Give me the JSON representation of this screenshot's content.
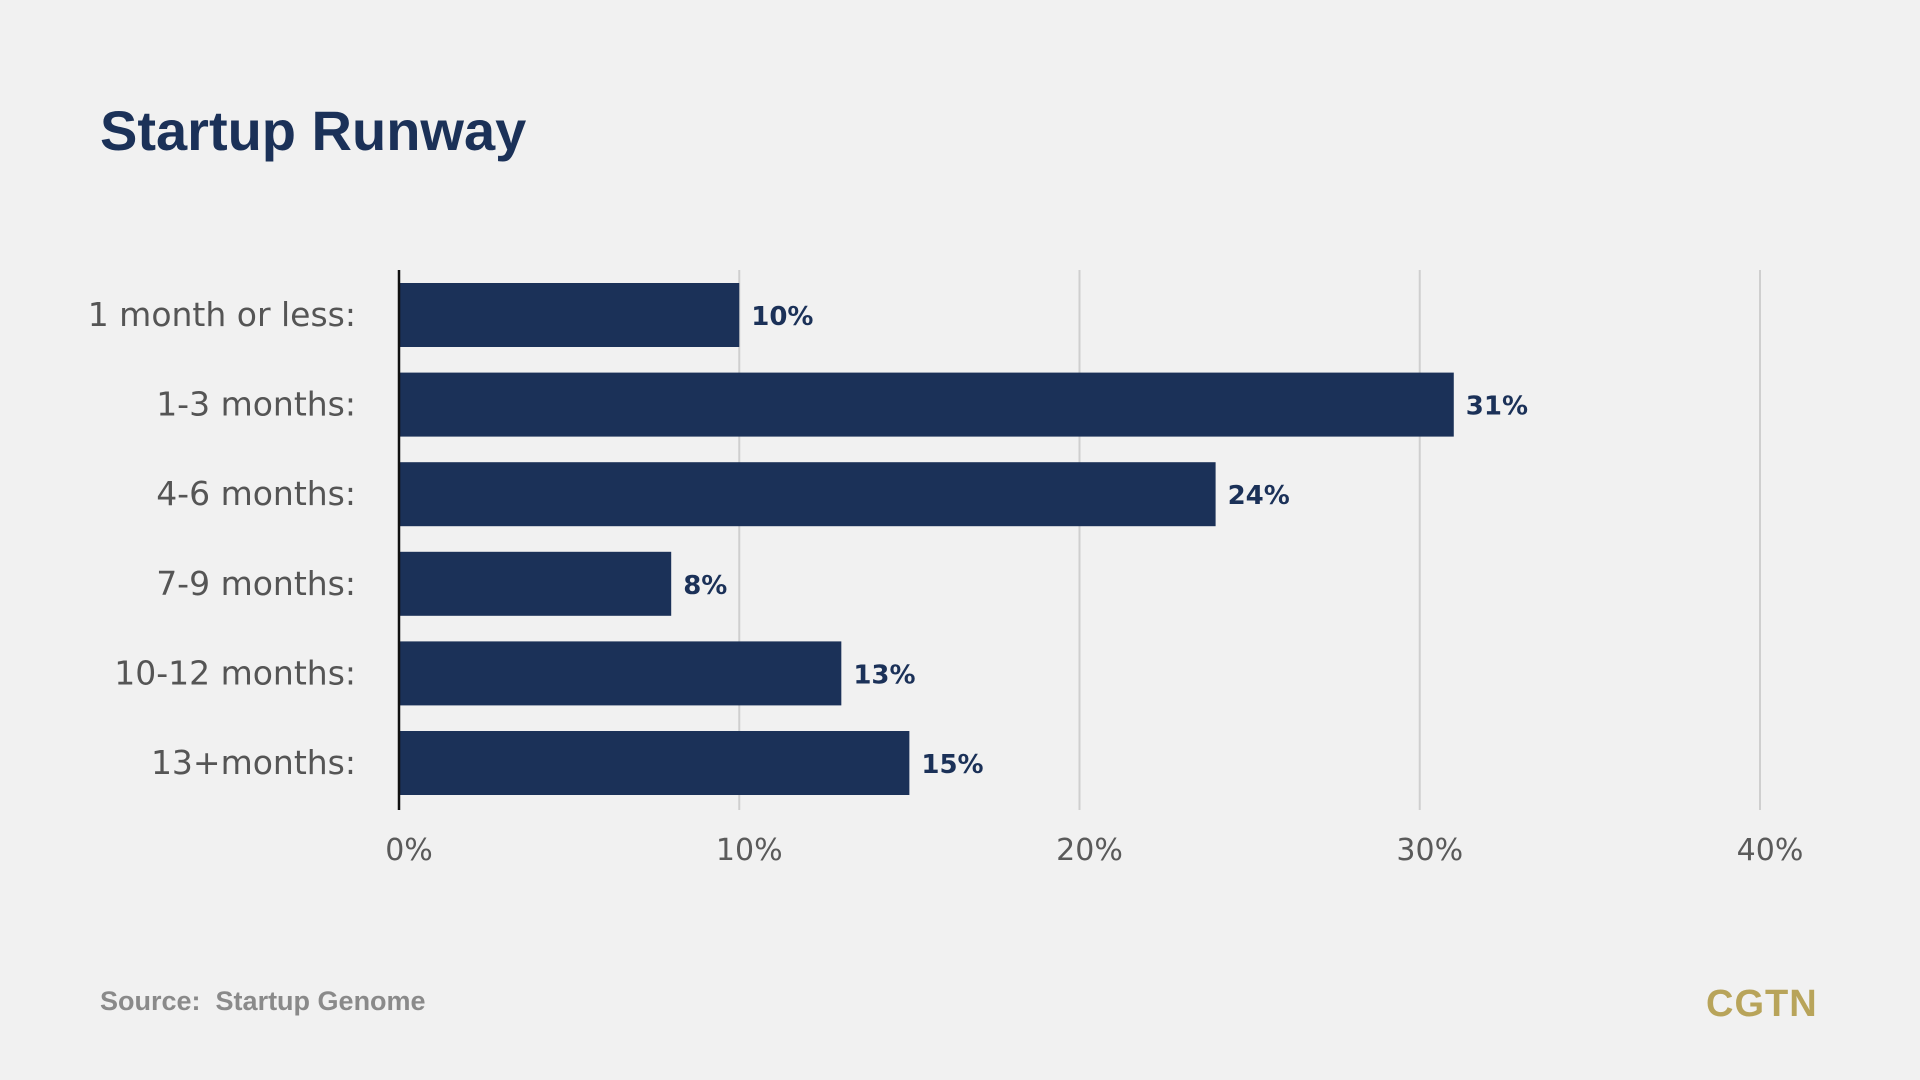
{
  "chart_data": {
    "type": "bar",
    "orientation": "horizontal",
    "title": "Startup Runway",
    "categories": [
      "1 month or less:",
      "1-3 months:",
      "4-6 months:",
      "7-9 months:",
      "10-12 months:",
      "13+months:"
    ],
    "values": [
      10,
      31,
      24,
      8,
      13,
      15
    ],
    "value_labels": [
      "10%",
      "31%",
      "24%",
      "8%",
      "13%",
      "15%"
    ],
    "xticks": [
      "0%",
      "10%",
      "20%",
      "30%",
      "40%"
    ],
    "xlim": [
      0,
      40
    ],
    "xlabel": "",
    "ylabel": "",
    "grid": "vertical",
    "legend": "none"
  },
  "colors": {
    "bar": "#1b3158",
    "value_label": "#1b3158",
    "category_label": "#555555",
    "tick_label": "#5a5a5a",
    "grid": "#cfcfcf",
    "axis": "#111111",
    "brand": "#b8a45a"
  },
  "footer": {
    "source_label": "Source:",
    "source_value": "Startup Genome",
    "logo": "CGTN"
  }
}
